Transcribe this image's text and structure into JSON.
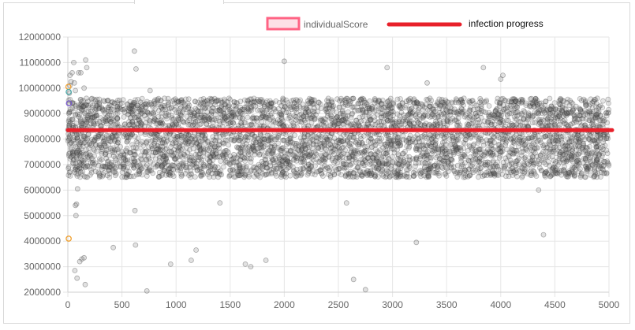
{
  "chart_data": {
    "type": "scatter",
    "title": "",
    "xlabel": "",
    "ylabel": "",
    "xlim": [
      0,
      5000
    ],
    "ylim": [
      2000000,
      12000000
    ],
    "x_ticks": [
      "0",
      "500",
      "1000",
      "1500",
      "2000",
      "2500",
      "3000",
      "3500",
      "4000",
      "4500",
      "5000"
    ],
    "y_ticks": [
      "2000000",
      "3000000",
      "4000000",
      "5000000",
      "6000000",
      "7000000",
      "8000000",
      "9000000",
      "10000000",
      "11000000",
      "12000000"
    ],
    "grid": true,
    "legend_position": "top",
    "series": [
      {
        "name": "individualScore",
        "kind": "scatter",
        "color": "#555555",
        "legend_color": "#ff6384",
        "dense_band": {
          "x_range": [
            0,
            5000
          ],
          "y_range": [
            6500000,
            9600000
          ],
          "approx_count": 4800
        },
        "points": [
          [
            5,
            8200000
          ],
          [
            12,
            8450000
          ],
          [
            8,
            8700000
          ],
          [
            10,
            9000000
          ],
          [
            15,
            9400000
          ],
          [
            14,
            9800000
          ],
          [
            18,
            10100000
          ],
          [
            20,
            10500000
          ],
          [
            30,
            10250000
          ],
          [
            40,
            10600000
          ],
          [
            55,
            11000000
          ],
          [
            60,
            10200000
          ],
          [
            70,
            9900000
          ],
          [
            100,
            10600000
          ],
          [
            120,
            10600000
          ],
          [
            165,
            11100000
          ],
          [
            175,
            10800000
          ],
          [
            150,
            10000000
          ],
          [
            90,
            6050000
          ],
          [
            80,
            5450000
          ],
          [
            75,
            5000000
          ],
          [
            70,
            5400000
          ],
          [
            65,
            2850000
          ],
          [
            85,
            2550000
          ],
          [
            110,
            3200000
          ],
          [
            130,
            3300000
          ],
          [
            150,
            3350000
          ],
          [
            160,
            2300000
          ],
          [
            420,
            3750000
          ],
          [
            615,
            11450000
          ],
          [
            630,
            10750000
          ],
          [
            620,
            5200000
          ],
          [
            625,
            3850000
          ],
          [
            730,
            2050000
          ],
          [
            760,
            9900000
          ],
          [
            950,
            3100000
          ],
          [
            1140,
            3250000
          ],
          [
            1185,
            3650000
          ],
          [
            1405,
            5500000
          ],
          [
            1640,
            3100000
          ],
          [
            1690,
            3000000
          ],
          [
            1830,
            3250000
          ],
          [
            2000,
            11050000
          ],
          [
            2575,
            5500000
          ],
          [
            2640,
            2500000
          ],
          [
            2750,
            2100000
          ],
          [
            2950,
            10800000
          ],
          [
            3220,
            3950000
          ],
          [
            3320,
            10200000
          ],
          [
            3840,
            10800000
          ],
          [
            4000,
            10350000
          ],
          [
            4020,
            10500000
          ],
          [
            4350,
            6000000
          ],
          [
            4395,
            4250000
          ]
        ]
      },
      {
        "name": "infection progress",
        "kind": "line",
        "color": "#e8202a",
        "y_value": 8350000
      }
    ],
    "highlight_points": [
      {
        "x": 5,
        "y": 10050000,
        "color": "#f0a030"
      },
      {
        "x": 8,
        "y": 9850000,
        "color": "#4aa8a8"
      },
      {
        "x": 10,
        "y": 9400000,
        "color": "#7a5ad0"
      },
      {
        "x": 8,
        "y": 4100000,
        "color": "#f0a030"
      }
    ]
  }
}
